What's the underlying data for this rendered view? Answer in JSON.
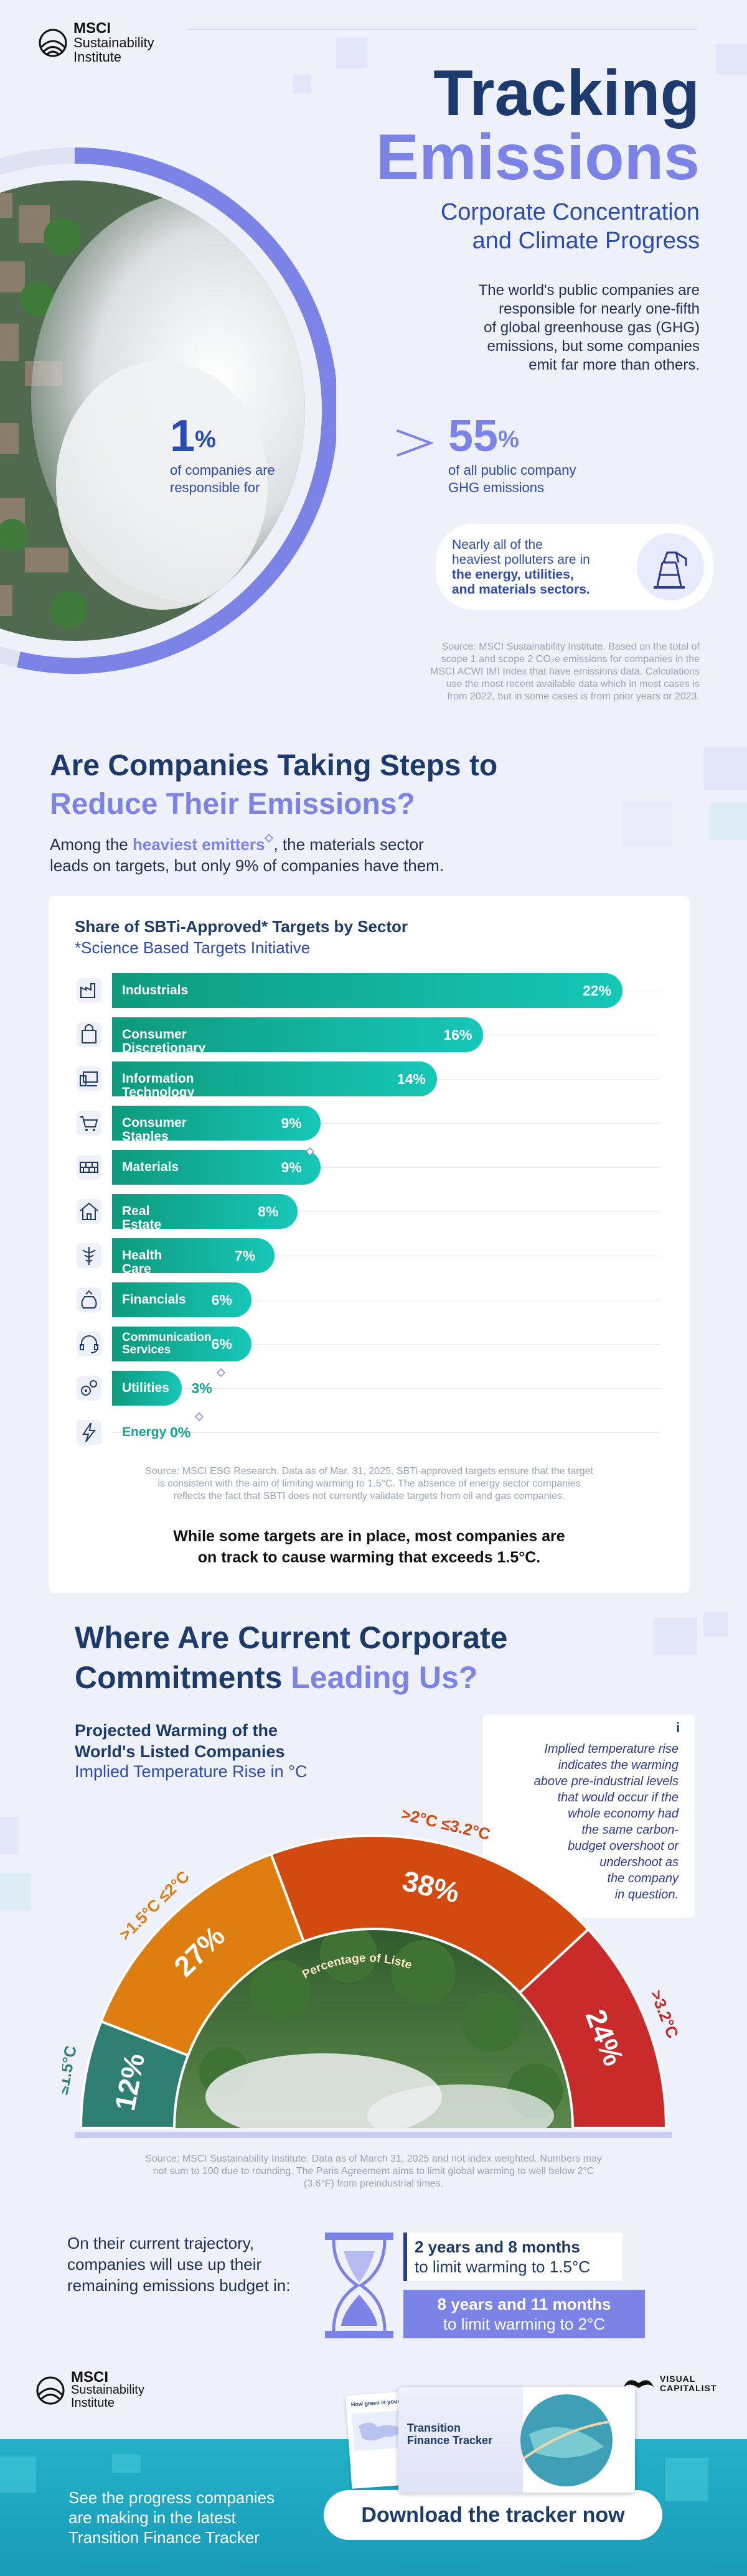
{
  "header": {
    "brand": "MSCI",
    "brand_line2": "Sustainability",
    "brand_line3": "Institute",
    "title_line1": "Tracking",
    "title_line2": "Emissions",
    "subtitle_line1": "Corporate Concentration",
    "subtitle_line2": "and Climate Progress"
  },
  "intro": {
    "lines": [
      "The world's public companies are",
      "responsible for nearly one-fifth",
      "of global greenhouse gas (GHG)",
      "emissions, but some companies",
      "emit far more than others."
    ],
    "stat_left_value": "1",
    "stat_left_unit": "%",
    "stat_left_caption_1": "of companies are",
    "stat_left_caption_2": "responsible for",
    "stat_right_value": "55",
    "stat_right_unit": "%",
    "stat_right_caption_1": "of all public company",
    "stat_right_caption_2": "GHG emissions",
    "polluters_1": "Nearly all of the",
    "polluters_2": "heaviest polluters are in",
    "polluters_3": "the energy, utilities,",
    "polluters_4": "and materials sectors.",
    "source_lines": [
      "Source: MSCI Sustainability Institute. Based on the total of",
      "scope 1 and scope 2 CO₂e emissions for companies in the",
      "MSCI ACWI IMI Index that have emissions data. Calculations",
      "use the most recent available data which in most cases is",
      "from 2022, but in some cases is from prior years or 2023."
    ]
  },
  "section_targets": {
    "title_line1": "Are Companies Taking Steps to",
    "title_line2": "Reduce Their Emissions?",
    "sub_pre": "Among the ",
    "sub_highlight": "heaviest emitters",
    "sub_post": ", the materials sector",
    "sub_line2": "leads on targets, but only 9% of companies have them.",
    "card_title": "Share of SBTi-Approved* Targets by Sector",
    "card_subtitle": "*Science Based Targets Initiative",
    "source_lines": [
      "Source: MSCI ESG Research. Data as of Mar. 31, 2025. SBTi-approved targets ensure that the target",
      "is consistent with the aim of limiting warming to 1.5°C. The absence of energy sector companies",
      "reflects the fact that SBTI does not currently validate targets from oil and gas companies."
    ],
    "warm_line1": "While some targets are in place, most companies are",
    "warm_line2": "on track to cause warming that exceeds 1.5°C."
  },
  "chart_data": {
    "type": "bar",
    "title": "Share of SBTi-Approved* Targets by Sector",
    "subtitle": "*Science Based Targets Initiative",
    "xlabel": "",
    "ylabel": "",
    "xlim": [
      0,
      22
    ],
    "unit": "%",
    "categories": [
      "Industrials",
      "Consumer Discretionary",
      "Information Technology",
      "Consumer Staples",
      "Materials",
      "Real Estate",
      "Health Care",
      "Financials",
      "Communication Services",
      "Utilities",
      "Energy"
    ],
    "values": [
      22,
      16,
      14,
      9,
      9,
      8,
      7,
      6,
      6,
      3,
      0
    ],
    "labels": [
      "22%",
      "16%",
      "14%",
      "9%",
      "9%",
      "8%",
      "7%",
      "6%",
      "6%",
      "3%",
      "0%"
    ],
    "heavy_emitter_sectors": [
      "Materials",
      "Utilities",
      "Energy"
    ]
  },
  "section_commitments": {
    "title_line1": "Where Are Current Corporate",
    "title_line2a": "Commitments ",
    "title_line2b": "Leading Us?",
    "proj_title_1": "Projected Warming of the",
    "proj_title_2": "World's Listed Companies",
    "proj_sub": "Implied Temperature Rise in °C",
    "info_icon": "i",
    "info_lines": [
      "Implied temperature rise",
      "indicates the warming",
      "above pre-industrial levels",
      "that would occur if the",
      "whole economy had",
      "the same carbon-",
      "budget overshoot or",
      "undershoot as",
      "the company",
      "in question."
    ],
    "arc_caption": "Percentage of Listed Companies Globally",
    "segments": [
      {
        "range": "≤1.5°C",
        "value": "12%",
        "share": 12,
        "color": "#2f7f73"
      },
      {
        "range": ">1.5°C ≤2°C",
        "value": "27%",
        "share": 27,
        "color": "#de7d10"
      },
      {
        "range": ">2°C ≤3.2°C",
        "value": "38%",
        "share": 38,
        "color": "#d24a10"
      },
      {
        "range": ">3.2°C",
        "value": "24%",
        "share": 24,
        "color": "#c92a2a"
      }
    ],
    "source_lines": [
      "Source: MSCI Sustainability Institute. Data as of March 31, 2025 and not index weighted. Numbers may",
      "not sum to 100 due to rounding. The Paris Agreement aims to limit global warming to well below 2°C",
      "(3.6°F) from preindustrial times."
    ]
  },
  "budget": {
    "lines": [
      "On their current trajectory,",
      "companies will use up their",
      "remaining emissions budget in:"
    ],
    "box1_bold": "2 years and 8 months",
    "box1_rest": "to limit warming to 1.5°C",
    "box2_bold": "8 years and 11 months",
    "box2_rest": "to limit warming to 2°C"
  },
  "footer": {
    "brand": "MSCI",
    "brand_line2": "Sustainability",
    "brand_line3": "Institute",
    "partner_1": "VISUAL",
    "partner_2": "CAPITALIST",
    "cta_lines": [
      "See the progress companies",
      "are making in the latest",
      "Transition Finance Tracker"
    ],
    "button_label": "Download the tracker now",
    "report_title_1": "Transition",
    "report_title_2": "Finance Tracker",
    "report_caption": "How green is your..."
  },
  "colors": {
    "navy": "#1d3a6c",
    "lavender": "#7b83e6",
    "teal_start": "#0e9a7d",
    "teal_end": "#16c7b8",
    "footer_teal": "#23b1c8"
  }
}
